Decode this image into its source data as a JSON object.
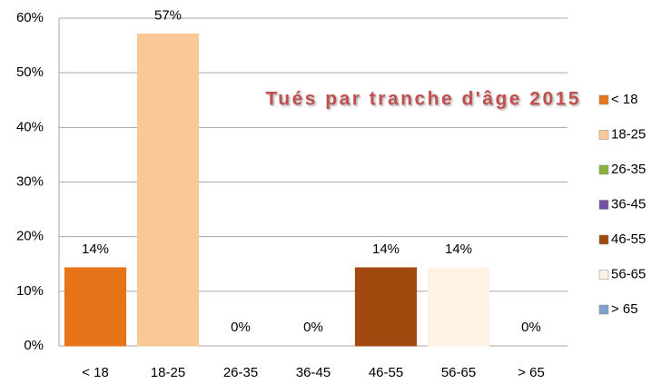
{
  "chart_data": {
    "type": "bar",
    "title": "Tués  par tranche d'âge 2015",
    "categories": [
      "< 18",
      "18-25",
      "26-35",
      "36-45",
      "46-55",
      "56-65",
      "> 65"
    ],
    "values": [
      14.3,
      57.1,
      0,
      0,
      14.3,
      14.3,
      0
    ],
    "value_labels": [
      "14%",
      "57%",
      "0%",
      "0%",
      "14%",
      "14%",
      "0%"
    ],
    "colors": [
      "#e8741a",
      "#fac896",
      "#8cb040",
      "#7050a0",
      "#a04a10",
      "#fdf3e3",
      "#80a0d0"
    ],
    "ylim": [
      0,
      60
    ],
    "yticks": [
      {
        "value": 0,
        "label": "0%"
      },
      {
        "value": 10,
        "label": "10%"
      },
      {
        "value": 20,
        "label": "20%"
      },
      {
        "value": 30,
        "label": "30%"
      },
      {
        "value": 40,
        "label": "40%"
      },
      {
        "value": 50,
        "label": "50%"
      },
      {
        "value": 60,
        "label": "60%"
      }
    ],
    "grid": true,
    "legend": "right"
  }
}
